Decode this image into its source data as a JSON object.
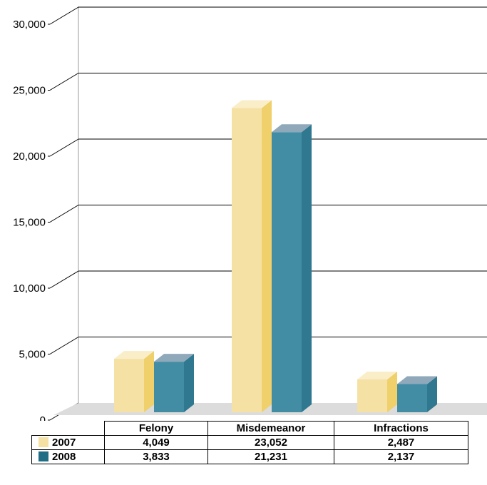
{
  "chart_data": {
    "type": "bar",
    "categories": [
      "Felony",
      "Misdemeanor",
      "Infractions"
    ],
    "series": [
      {
        "name": "2007",
        "values": [
          4049,
          23052,
          2487
        ],
        "labels": [
          "4,049",
          "23,052",
          "2,487"
        ]
      },
      {
        "name": "2008",
        "values": [
          3833,
          21231,
          2137
        ],
        "labels": [
          "3,833",
          "21,231",
          "2,137"
        ]
      }
    ],
    "y_ticks": [
      "0",
      "5,000",
      "10,000",
      "15,000",
      "20,000",
      "25,000",
      "30,000"
    ],
    "ylim": [
      0,
      30000
    ],
    "grid": true,
    "legend": "bottom-left table",
    "colors": {
      "2007": {
        "front": "#F5E1A4",
        "side": "#EFD06A",
        "top": "#FAEEC8"
      },
      "2008": {
        "front": "#428DA3",
        "side": "#2F7890",
        "top": "#8FA9BB"
      },
      "floor": "#DCDCDC",
      "grid": "#000000"
    }
  }
}
